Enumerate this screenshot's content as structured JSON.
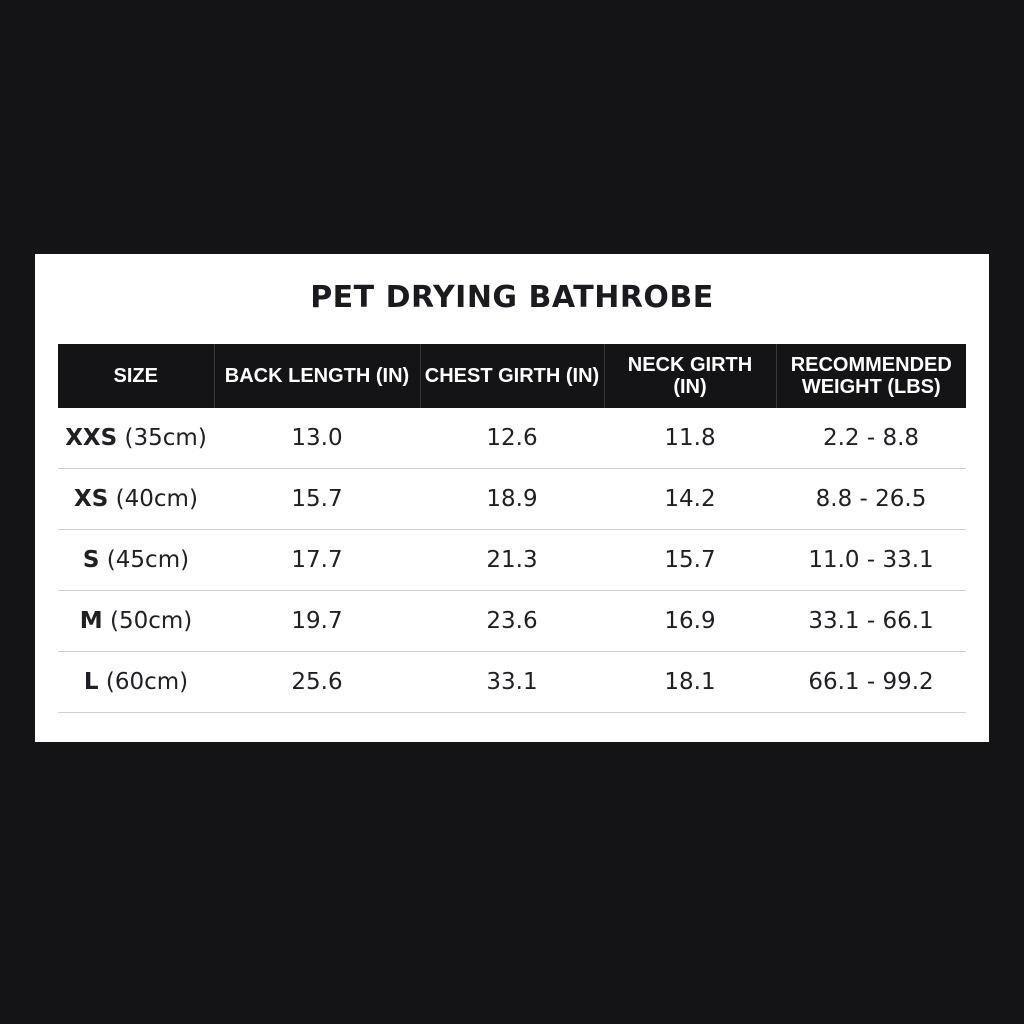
{
  "title": "PET DRYING BATHROBE",
  "table": {
    "headers": [
      "SIZE",
      "BACK LENGTH (IN)",
      "CHEST GIRTH (IN)",
      "NECK GIRTH (IN)",
      "RECOMMENDED WEIGHT (LBS)"
    ],
    "rows": [
      {
        "size_code": "XXS",
        "size_cm": " (35cm)",
        "back_length": "13.0",
        "chest_girth": "12.6",
        "neck_girth": "11.8",
        "weight": "2.2 - 8.8"
      },
      {
        "size_code": "XS",
        "size_cm": " (40cm)",
        "back_length": "15.7",
        "chest_girth": "18.9",
        "neck_girth": "14.2",
        "weight": "8.8 - 26.5"
      },
      {
        "size_code": "S",
        "size_cm": " (45cm)",
        "back_length": "17.7",
        "chest_girth": "21.3",
        "neck_girth": "15.7",
        "weight": "11.0 - 33.1"
      },
      {
        "size_code": "M",
        "size_cm": " (50cm)",
        "back_length": "19.7",
        "chest_girth": "23.6",
        "neck_girth": "16.9",
        "weight": "33.1 - 66.1"
      },
      {
        "size_code": "L",
        "size_cm": " (60cm)",
        "back_length": "25.6",
        "chest_girth": "33.1",
        "neck_girth": "18.1",
        "weight": "66.1 - 99.2"
      }
    ]
  },
  "colors": {
    "background": "#141416",
    "card": "#ffffff",
    "header_fill": "#141416",
    "header_text": "#ffffff",
    "body_text": "#1f1f24",
    "row_divider": "#cfcfd2"
  }
}
